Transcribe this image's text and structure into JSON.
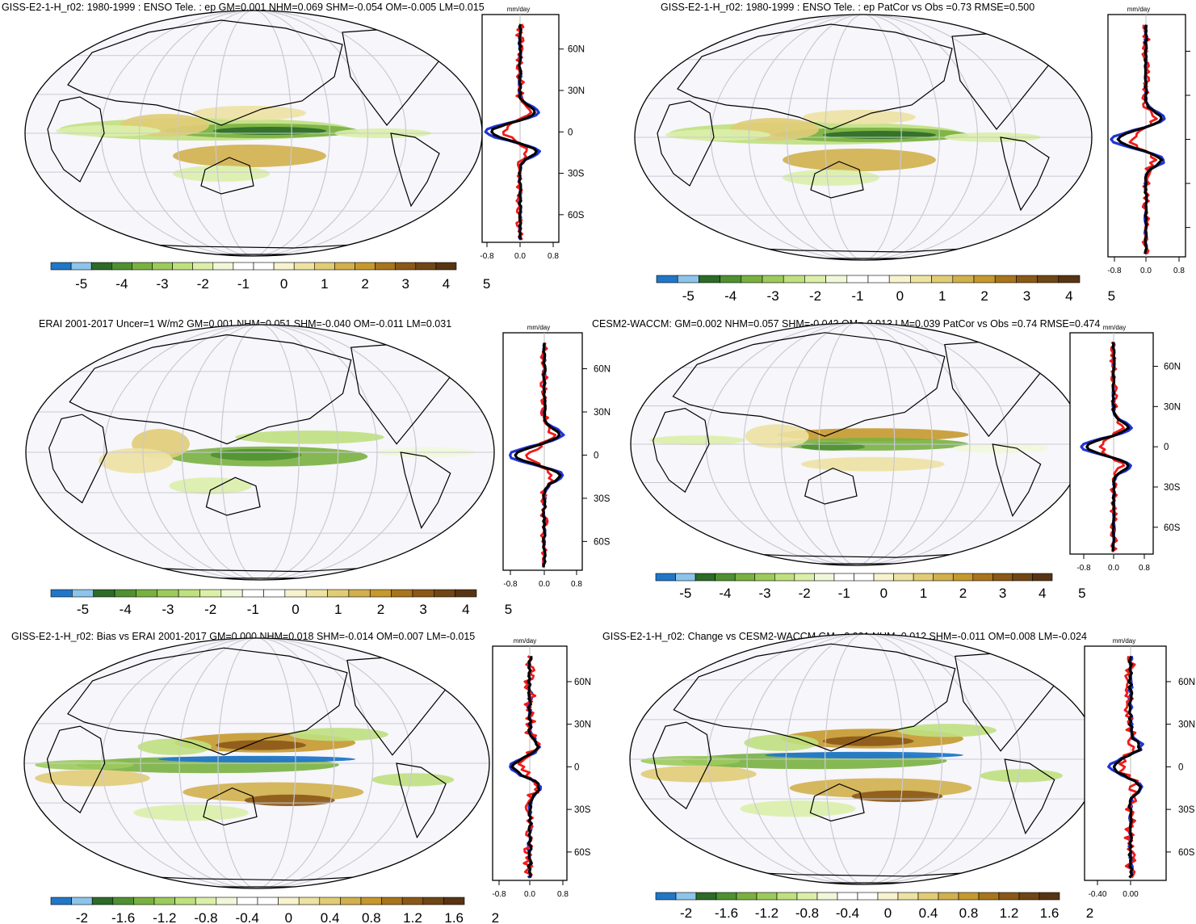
{
  "colorbar_colors": [
    "#2177c7",
    "#8cc4ea",
    "#2c6b28",
    "#4f9131",
    "#79b140",
    "#9ccb5c",
    "#bfe07e",
    "#dcefa9",
    "#f1f8da",
    "#ffffff",
    "#ffffff",
    "#f7f3cf",
    "#ede2a2",
    "#e1cc76",
    "#d1b04d",
    "#c5992d",
    "#a8741c",
    "#8b5817",
    "#704616",
    "#583413"
  ],
  "lat_ticks": [
    "60N",
    "30N",
    "0",
    "30S",
    "60S"
  ],
  "panels": [
    {
      "title": "GISS-E2-1-H_r02: 1980-1999 : ENSO Tele. : ep GM=0.001 NHM=0.069 SHM=-0.054 OM=-0.005 LM=0.015",
      "unit": "mm/day",
      "x_ticks": [
        "-0.8",
        "0.0",
        "0.8"
      ],
      "cb_labels": [
        "-5",
        "-4",
        "-3",
        "-2",
        "-1",
        "0",
        "1",
        "2",
        "3",
        "4",
        "5"
      ],
      "show_lat_labels": true
    },
    {
      "title": "GISS-E2-1-H_r02: 1980-1999 : ENSO Tele. : ep PatCor vs Obs =0.73 RMSE=0.500",
      "unit": "mm/day",
      "x_ticks": [
        "-0.8",
        "0.0",
        "0.8"
      ],
      "cb_labels": [
        "-5",
        "-4",
        "-3",
        "-2",
        "-1",
        "0",
        "1",
        "2",
        "3",
        "4",
        "5"
      ],
      "show_lat_labels": false
    },
    {
      "title": "ERAI 2001-2017 Uncer=1 W/m2 GM=0.001 NHM=0.051 SHM=-0.040 OM=-0.011 LM=0.031",
      "unit": "mm/day",
      "x_ticks": [
        "-0.8",
        "0.0",
        "0.8"
      ],
      "cb_labels": [
        "-5",
        "-4",
        "-3",
        "-2",
        "-1",
        "0",
        "1",
        "2",
        "3",
        "4",
        "5"
      ],
      "show_lat_labels": true
    },
    {
      "title": "CESM2-WACCM: GM=0.002 NHM=0.057 SHM=-0.043 OM=-0.013 LM=0.039 PatCor vs Obs =0.74 RMSE=0.474",
      "unit": "mm/day",
      "x_ticks": [
        "-0.8",
        "0.0",
        "0.8"
      ],
      "cb_labels": [
        "-5",
        "-4",
        "-3",
        "-2",
        "-1",
        "0",
        "1",
        "2",
        "3",
        "4",
        "5"
      ],
      "show_lat_labels": true
    },
    {
      "title": "GISS-E2-1-H_r02: Bias vs ERAI 2001-2017 GM=0.000 NHM=0.018 SHM=-0.014 OM=0.007 LM=-0.015",
      "unit": "mm/day",
      "x_ticks": [
        "-0.8",
        "0.0",
        "0.8"
      ],
      "cb_labels": [
        "-2",
        "-1.6",
        "-1.2",
        "-0.8",
        "-0.4",
        "0",
        "0.4",
        "0.8",
        "1.2",
        "1.6",
        "2"
      ],
      "show_lat_labels": true
    },
    {
      "title": "GISS-E2-1-H_r02: Change vs CESM2-WACCM GM=-0.001 NHM=0.012 SHM=-0.011 OM=0.008 LM=-0.024",
      "unit": "mm/day",
      "x_ticks": [
        "-0.40",
        "0.00"
      ],
      "cb_labels": [
        "-2",
        "-1.6",
        "-1.2",
        "-0.8",
        "-0.4",
        "0",
        "0.4",
        "0.8",
        "1.2",
        "1.6",
        "2"
      ],
      "show_lat_labels": true
    }
  ]
}
